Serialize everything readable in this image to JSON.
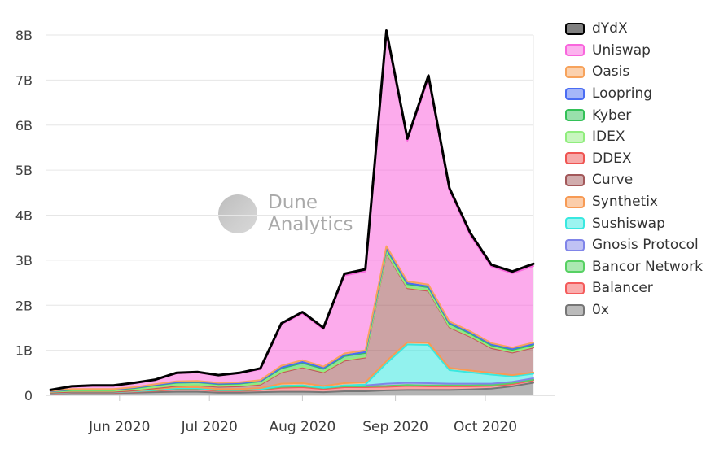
{
  "watermark": {
    "line1": "Dune",
    "line2": "Analytics"
  },
  "chart_data": {
    "type": "area",
    "stacked": true,
    "title": "",
    "xlabel": "",
    "ylabel": "",
    "grid": true,
    "legend_position": "right",
    "x_unit": "weekly index (May-Oct 2020)",
    "x_count": 24,
    "ylim": [
      0,
      8
    ],
    "y_ticks": [
      {
        "v": 0,
        "label": "0"
      },
      {
        "v": 1,
        "label": "1B"
      },
      {
        "v": 2,
        "label": "2B"
      },
      {
        "v": 3,
        "label": "3B"
      },
      {
        "v": 4,
        "label": "4B"
      },
      {
        "v": 5,
        "label": "5B"
      },
      {
        "v": 6,
        "label": "6B"
      },
      {
        "v": 7,
        "label": "7B"
      },
      {
        "v": 8,
        "label": "8B"
      }
    ],
    "x_ticks": [
      {
        "pos": 3.29,
        "label": "Jun 2020"
      },
      {
        "pos": 7.57,
        "label": "Jul 2020"
      },
      {
        "pos": 12.0,
        "label": "Aug 2020"
      },
      {
        "pos": 16.43,
        "label": "Sep 2020"
      },
      {
        "pos": 20.71,
        "label": "Oct 2020"
      }
    ],
    "legend_order_top_to_bottom": [
      "dYdX",
      "Uniswap",
      "Oasis",
      "Loopring",
      "Kyber",
      "IDEX",
      "DDEX",
      "Curve",
      "Synthetix",
      "Sushiswap",
      "Gnosis Protocol",
      "Bancor Network",
      "Balancer",
      "0x"
    ],
    "series": [
      {
        "name": "0x",
        "color": "#767676",
        "values": [
          0.04,
          0.05,
          0.05,
          0.05,
          0.06,
          0.07,
          0.08,
          0.08,
          0.06,
          0.06,
          0.07,
          0.08,
          0.08,
          0.07,
          0.09,
          0.09,
          0.11,
          0.12,
          0.12,
          0.12,
          0.13,
          0.15,
          0.2,
          0.28
        ]
      },
      {
        "name": "Balancer",
        "color": "#f45b5b",
        "values": [
          0.0,
          0.01,
          0.01,
          0.01,
          0.02,
          0.03,
          0.05,
          0.05,
          0.04,
          0.04,
          0.05,
          0.09,
          0.1,
          0.07,
          0.09,
          0.09,
          0.08,
          0.09,
          0.08,
          0.08,
          0.07,
          0.06,
          0.05,
          0.05
        ]
      },
      {
        "name": "Bancor Network",
        "color": "#57d163",
        "values": [
          0.01,
          0.01,
          0.01,
          0.01,
          0.01,
          0.01,
          0.02,
          0.02,
          0.01,
          0.01,
          0.01,
          0.02,
          0.02,
          0.02,
          0.02,
          0.02,
          0.02,
          0.02,
          0.02,
          0.02,
          0.02,
          0.02,
          0.02,
          0.02
        ]
      },
      {
        "name": "Gnosis Protocol",
        "color": "#8085e9",
        "values": [
          0.0,
          0.0,
          0.0,
          0.0,
          0.0,
          0.01,
          0.01,
          0.01,
          0.01,
          0.01,
          0.01,
          0.02,
          0.02,
          0.01,
          0.02,
          0.02,
          0.05,
          0.05,
          0.05,
          0.04,
          0.04,
          0.03,
          0.03,
          0.03
        ]
      },
      {
        "name": "Sushiswap",
        "color": "#38e8e0",
        "values": [
          0.0,
          0.0,
          0.0,
          0.0,
          0.0,
          0.0,
          0.0,
          0.0,
          0.0,
          0.0,
          0.0,
          0.0,
          0.0,
          0.0,
          0.0,
          0.02,
          0.45,
          0.85,
          0.85,
          0.3,
          0.25,
          0.2,
          0.12,
          0.1
        ]
      },
      {
        "name": "Synthetix",
        "color": "#f79a54",
        "values": [
          0.01,
          0.01,
          0.01,
          0.01,
          0.01,
          0.02,
          0.02,
          0.02,
          0.02,
          0.02,
          0.02,
          0.05,
          0.05,
          0.04,
          0.05,
          0.05,
          0.05,
          0.05,
          0.05,
          0.05,
          0.04,
          0.04,
          0.03,
          0.03
        ]
      },
      {
        "name": "Curve",
        "color": "#a3585a",
        "values": [
          0.0,
          0.0,
          0.0,
          0.0,
          0.01,
          0.02,
          0.03,
          0.04,
          0.05,
          0.06,
          0.08,
          0.25,
          0.35,
          0.3,
          0.5,
          0.55,
          2.4,
          1.2,
          1.15,
          0.9,
          0.75,
          0.55,
          0.5,
          0.55
        ]
      },
      {
        "name": "DDEX",
        "color": "#ef5552",
        "values": [
          0.01,
          0.01,
          0.01,
          0.01,
          0.01,
          0.01,
          0.01,
          0.01,
          0.01,
          0.01,
          0.01,
          0.01,
          0.01,
          0.01,
          0.01,
          0.01,
          0.01,
          0.01,
          0.01,
          0.01,
          0.01,
          0.01,
          0.01,
          0.01
        ]
      },
      {
        "name": "IDEX",
        "color": "#90ed7d",
        "values": [
          0.01,
          0.01,
          0.01,
          0.01,
          0.01,
          0.01,
          0.01,
          0.01,
          0.01,
          0.01,
          0.01,
          0.01,
          0.01,
          0.01,
          0.01,
          0.01,
          0.01,
          0.01,
          0.01,
          0.01,
          0.01,
          0.01,
          0.01,
          0.01
        ]
      },
      {
        "name": "Kyber",
        "color": "#33c158",
        "values": [
          0.01,
          0.02,
          0.02,
          0.02,
          0.03,
          0.04,
          0.05,
          0.05,
          0.04,
          0.04,
          0.05,
          0.07,
          0.08,
          0.06,
          0.08,
          0.08,
          0.07,
          0.07,
          0.06,
          0.06,
          0.05,
          0.04,
          0.04,
          0.04
        ]
      },
      {
        "name": "Loopring",
        "color": "#4a6cf3",
        "values": [
          0.0,
          0.01,
          0.01,
          0.01,
          0.01,
          0.01,
          0.01,
          0.01,
          0.01,
          0.01,
          0.01,
          0.02,
          0.02,
          0.02,
          0.02,
          0.02,
          0.02,
          0.02,
          0.02,
          0.02,
          0.02,
          0.02,
          0.02,
          0.02
        ]
      },
      {
        "name": "Oasis",
        "color": "#f7a35c",
        "values": [
          0.01,
          0.01,
          0.01,
          0.01,
          0.01,
          0.02,
          0.02,
          0.02,
          0.02,
          0.02,
          0.02,
          0.04,
          0.04,
          0.03,
          0.04,
          0.04,
          0.04,
          0.04,
          0.04,
          0.03,
          0.03,
          0.03,
          0.03,
          0.03
        ]
      },
      {
        "name": "Uniswap",
        "color": "#f966dd",
        "values": [
          0.02,
          0.05,
          0.07,
          0.07,
          0.09,
          0.09,
          0.18,
          0.19,
          0.16,
          0.2,
          0.24,
          0.92,
          1.04,
          0.83,
          1.73,
          1.75,
          4.74,
          3.12,
          4.58,
          2.91,
          2.13,
          1.7,
          1.65,
          1.7
        ]
      },
      {
        "name": "dYdX",
        "color": "#000000",
        "line_width": 3,
        "values": [
          0.0,
          0.01,
          0.01,
          0.01,
          0.01,
          0.01,
          0.01,
          0.01,
          0.01,
          0.01,
          0.02,
          0.02,
          0.03,
          0.03,
          0.04,
          0.05,
          0.05,
          0.05,
          0.06,
          0.05,
          0.05,
          0.04,
          0.04,
          0.05
        ]
      }
    ]
  }
}
